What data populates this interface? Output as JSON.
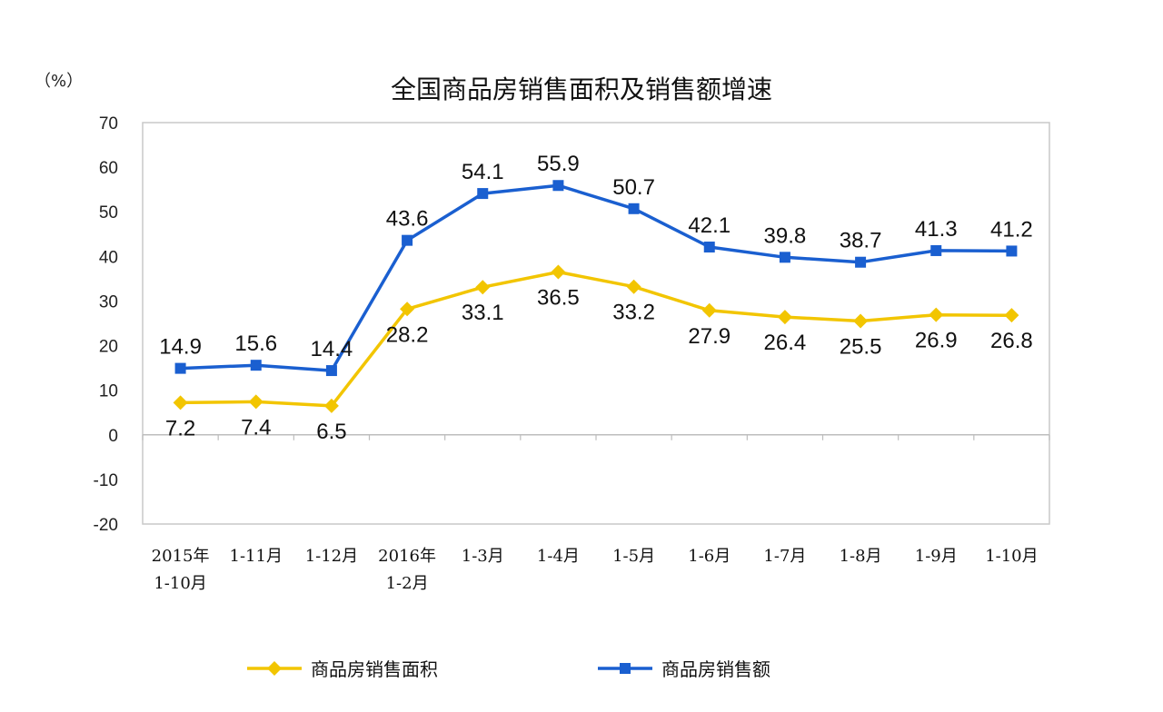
{
  "chart_data": {
    "type": "line",
    "title": "全国商品房销售面积及销售额增速",
    "unit_label": "（%）",
    "categories": [
      [
        "2015年",
        "1-10月"
      ],
      [
        "1-11月"
      ],
      [
        "1-12月"
      ],
      [
        "2016年",
        "1-2月"
      ],
      [
        "1-3月"
      ],
      [
        "1-4月"
      ],
      [
        "1-5月"
      ],
      [
        "1-6月"
      ],
      [
        "1-7月"
      ],
      [
        "1-8月"
      ],
      [
        "1-9月"
      ],
      [
        "1-10月"
      ]
    ],
    "ylim": [
      -20,
      70
    ],
    "yticks": [
      70,
      60,
      50,
      40,
      30,
      20,
      10,
      0,
      -10,
      -20
    ],
    "grid": false,
    "legend_position": "bottom",
    "series": [
      {
        "name": "商品房销售面积",
        "color": "#f2c500",
        "marker": "diamond",
        "values": [
          7.2,
          7.4,
          6.5,
          28.2,
          33.1,
          36.5,
          33.2,
          27.9,
          26.4,
          25.5,
          26.9,
          26.8
        ]
      },
      {
        "name": "商品房销售额",
        "color": "#1a5fd0",
        "marker": "square",
        "values": [
          14.9,
          15.6,
          14.4,
          43.6,
          54.1,
          55.9,
          50.7,
          42.1,
          39.8,
          38.7,
          41.3,
          41.2
        ]
      }
    ]
  }
}
